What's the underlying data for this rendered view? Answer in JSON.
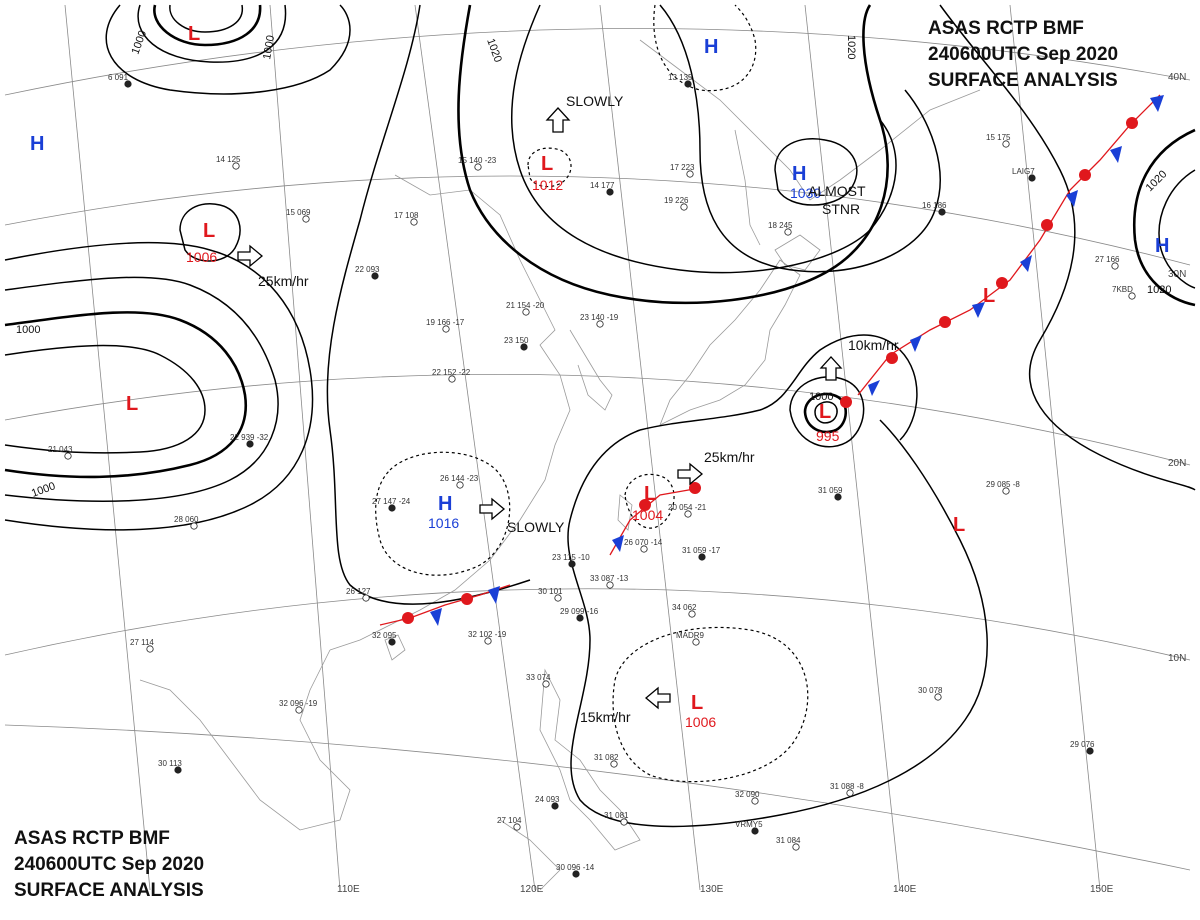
{
  "header_top_right": {
    "line1": "ASAS   RCTP   BMF",
    "line2": "240600UTC   Sep   2020",
    "line3": "SURFACE  ANALYSIS"
  },
  "header_bottom_left": {
    "line1": "ASAS   RCTP   BMF",
    "line2": "240600UTC   Sep   2020",
    "line3": "SURFACE  ANALYSIS"
  },
  "colors": {
    "high": "#1a3fd6",
    "low": "#e0181d",
    "isobar": "#000000",
    "grid": "#888888",
    "coast": "#9a9a9a"
  },
  "graticule": {
    "lon_labels": [
      "110E",
      "120E",
      "130E",
      "140E",
      "150E"
    ],
    "lat_labels": [
      "40N",
      "30N",
      "20N",
      "10N"
    ]
  },
  "pressure_systems": [
    {
      "type": "L",
      "pressure": ""
    },
    {
      "type": "L",
      "pressure": "1012"
    },
    {
      "type": "L",
      "pressure": "1006"
    },
    {
      "type": "L",
      "pressure": ""
    },
    {
      "type": "L",
      "pressure": "1004"
    },
    {
      "type": "L",
      "pressure": "995"
    },
    {
      "type": "L",
      "pressure": ""
    },
    {
      "type": "L",
      "pressure": "1006"
    },
    {
      "type": "L",
      "pressure": ""
    },
    {
      "type": "H",
      "pressure": ""
    },
    {
      "type": "H",
      "pressure": ""
    },
    {
      "type": "H",
      "pressure": "1030"
    },
    {
      "type": "H",
      "pressure": "1016"
    },
    {
      "type": "H",
      "pressure": ""
    }
  ],
  "isobar_labels": [
    "1000",
    "1000",
    "1020",
    "1020",
    "1000",
    "1000",
    "1000",
    "1020",
    "1020"
  ],
  "motion_notes": [
    "SLOWLY",
    "25km/hr",
    "ALMOST",
    "STNR",
    "10km/hr",
    "25km/hr",
    "SLOWLY",
    "15km/hr"
  ],
  "station_labels": [
    "6 091",
    "15 069",
    "17 108",
    "22 093",
    "14 125",
    "15 140 -23",
    "14 177",
    "17 223",
    "19 226",
    "13 135",
    "18 245",
    "15 175",
    "16 186",
    "27 166",
    "7KBD",
    "LAIG7",
    "19 166 -17",
    "21 154 -20",
    "23 150",
    "23 140 -19",
    "22 152 -22",
    "22 939 -32",
    "21 043",
    "26 144 -23",
    "27 147 -24",
    "28 060",
    "29 085 -8",
    "31 059",
    "34 062",
    "MADR9",
    "23 115 -10",
    "30 101",
    "26 127",
    "32 095",
    "32 102 -19",
    "33 087 -13",
    "29 099 -16",
    "27 114",
    "32 096 -19",
    "30 113",
    "33 074",
    "31 082",
    "24 093",
    "27 104",
    "31 081",
    "30 096 -14",
    "32 090",
    "31 088 -8",
    "VRMY5",
    "31 084",
    "30 078",
    "29 076",
    "20 054 -21",
    "26 070 -14",
    "31 059 -17"
  ]
}
